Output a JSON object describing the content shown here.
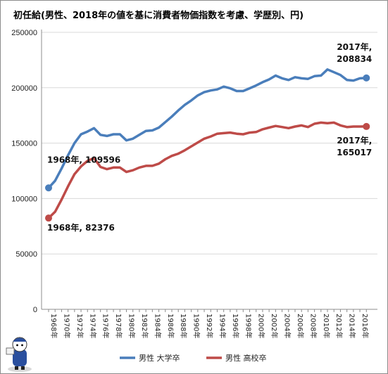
{
  "chart_data": {
    "type": "line",
    "title": "初任給(男性、2018年の値を基に消費者物価指数を考慮、学歴別、円)",
    "xlabel": "",
    "ylabel": "",
    "ylim": [
      0,
      250000
    ],
    "yticks": [
      0,
      50000,
      100000,
      150000,
      200000,
      250000
    ],
    "ytick_labels": [
      "0",
      "50000",
      "100000",
      "150000",
      "200000",
      "250000"
    ],
    "x": [
      1968,
      1969,
      1970,
      1971,
      1972,
      1973,
      1974,
      1975,
      1976,
      1977,
      1978,
      1979,
      1980,
      1981,
      1982,
      1983,
      1984,
      1985,
      1986,
      1987,
      1988,
      1989,
      1990,
      1991,
      1992,
      1993,
      1994,
      1995,
      1996,
      1997,
      1998,
      1999,
      2000,
      2001,
      2002,
      2003,
      2004,
      2005,
      2006,
      2007,
      2008,
      2009,
      2010,
      2011,
      2012,
      2013,
      2014,
      2015,
      2016,
      2017
    ],
    "xtick_labels": [
      "1968年",
      "1970年",
      "1972年",
      "1974年",
      "1976年",
      "1978年",
      "1980年",
      "1982年",
      "1984年",
      "1986年",
      "1988年",
      "1990年",
      "1992年",
      "1994年",
      "1996年",
      "1998年",
      "2000年",
      "2002年",
      "2004年",
      "2006年",
      "2008年",
      "2010年",
      "2012年",
      "2014年",
      "2016年"
    ],
    "grid": "horizontal",
    "legend_position": "bottom",
    "series": [
      {
        "name": "男性 大学卒",
        "color": "#4a7ebb",
        "values": [
          109596,
          116000,
          127000,
          139000,
          150000,
          158000,
          160500,
          163500,
          157500,
          156500,
          158000,
          158000,
          152500,
          154000,
          157500,
          161000,
          161500,
          164000,
          169000,
          174000,
          179500,
          184500,
          188500,
          193000,
          196000,
          197500,
          198500,
          201000,
          199500,
          197000,
          197000,
          199500,
          202000,
          205000,
          207500,
          211000,
          208500,
          207000,
          209500,
          208500,
          208000,
          210500,
          211000,
          216500,
          214000,
          211500,
          207000,
          206500,
          208500,
          208834
        ]
      },
      {
        "name": "男性 高校卒",
        "color": "#be4b48",
        "values": [
          82376,
          88000,
          99000,
          111000,
          122000,
          129000,
          134000,
          136500,
          128500,
          126500,
          128000,
          128000,
          124000,
          125500,
          128000,
          129500,
          129500,
          131500,
          135500,
          138500,
          140500,
          143500,
          147000,
          150500,
          154000,
          156000,
          158500,
          159000,
          159500,
          158500,
          158000,
          159500,
          160000,
          162500,
          164000,
          165500,
          164500,
          163500,
          165000,
          166000,
          164500,
          167500,
          168500,
          168000,
          168500,
          166000,
          164500,
          165000,
          165000,
          165017
        ]
      }
    ],
    "annotations": [
      {
        "series": 0,
        "point": "first",
        "lines": [
          "1968年, 109596"
        ]
      },
      {
        "series": 1,
        "point": "first",
        "lines": [
          "1968年, 82376"
        ]
      },
      {
        "series": 0,
        "point": "last",
        "lines": [
          "2017年,",
          "208834"
        ]
      },
      {
        "series": 1,
        "point": "last",
        "lines": [
          "2017年,",
          "165017"
        ]
      }
    ]
  }
}
